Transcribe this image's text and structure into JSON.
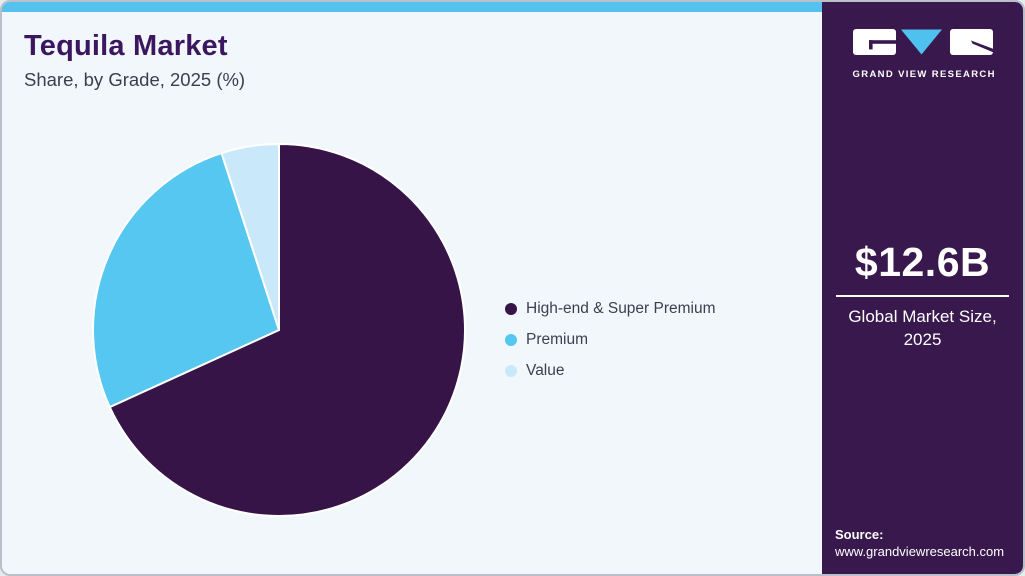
{
  "header": {
    "title": "Tequila Market",
    "subtitle": "Share, by Grade, 2025 (%)"
  },
  "chart_data": {
    "type": "pie",
    "title": "Tequila Market Share, by Grade, 2025 (%)",
    "unit": "%",
    "labels": [
      "High-end & Super Premium",
      "Premium",
      "Value"
    ],
    "values": [
      68.2,
      26.8,
      5.0
    ],
    "colors": [
      "#371447",
      "#56c7f1",
      "#c9e9fb"
    ],
    "start_angle_deg": 0,
    "direction": "clockwise",
    "legend_position": "right",
    "data_labels_shown": false
  },
  "sidebar": {
    "brand": "GRAND VIEW RESEARCH",
    "market_size": "$12.6B",
    "market_size_caption": "Global Market Size, 2025",
    "source_label": "Source:",
    "source_url": "www.grandviewresearch.com"
  },
  "theme": {
    "topbar": "#55c1ed",
    "card_bg": "#f1f7fb",
    "card_border": "#b9c0c8",
    "sidebar_bg": "#38184d",
    "title": "#3a175e",
    "subtitle": "#3d3d4f",
    "text": "#3e3e50",
    "brand_blue": "#4fc1ee",
    "slice_stroke": "#ffffff"
  }
}
